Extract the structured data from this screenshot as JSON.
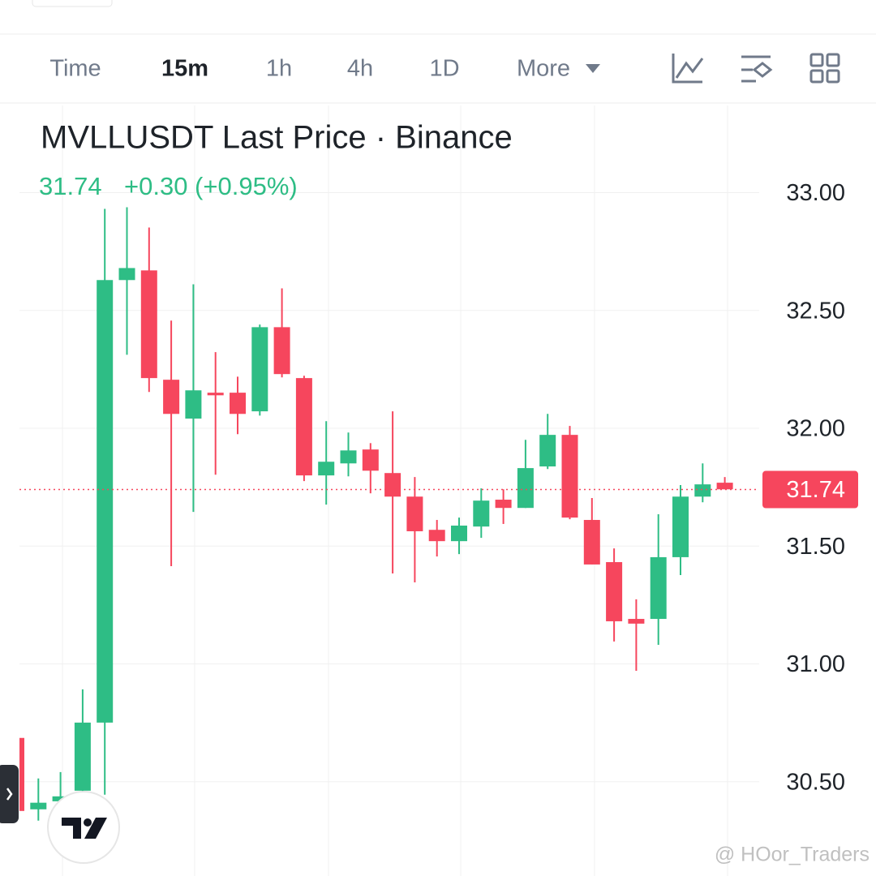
{
  "ui": {
    "tabs": [
      "Time",
      "15m",
      "1h",
      "4h",
      "1D",
      "More"
    ],
    "price": "31.74",
    "change": "+0.30 (+0.95%)",
    "watermark": "@ HOor_Traders"
  },
  "chart_data": {
    "type": "candlestick",
    "title": "MVLLUSDT Last Price · Binance",
    "open": [
      30.686,
      30.383,
      30.417,
      30.462,
      30.751,
      32.629,
      32.67,
      32.206,
      32.041,
      32.151,
      32.151,
      32.072,
      32.429,
      32.213,
      31.8,
      31.851,
      31.91,
      31.81,
      31.71,
      31.569,
      31.521,
      31.583,
      31.697,
      31.662,
      31.838,
      31.972,
      31.611,
      31.432,
      31.191,
      31.191,
      31.453,
      31.71,
      31.769
    ],
    "high": [
      30.686,
      30.514,
      30.541,
      30.892,
      32.931,
      32.938,
      32.852,
      32.457,
      32.611,
      32.323,
      32.219,
      32.44,
      32.594,
      32.223,
      32.03,
      31.982,
      31.937,
      32.072,
      31.793,
      31.611,
      31.621,
      31.745,
      31.741,
      31.951,
      32.061,
      32.01,
      31.704,
      31.49,
      31.274,
      31.635,
      31.759,
      31.851,
      31.793
    ],
    "low": [
      30.376,
      30.335,
      30.376,
      30.428,
      30.445,
      32.312,
      32.154,
      31.415,
      31.645,
      31.803,
      31.975,
      32.054,
      32.216,
      31.776,
      31.676,
      31.796,
      31.724,
      31.384,
      31.346,
      31.456,
      31.466,
      31.535,
      31.594,
      31.662,
      31.827,
      31.614,
      31.422,
      31.095,
      30.971,
      31.081,
      31.377,
      31.686,
      31.741
    ],
    "close": [
      30.376,
      30.411,
      30.438,
      30.751,
      32.629,
      32.68,
      32.213,
      32.061,
      32.161,
      32.14,
      32.061,
      32.429,
      32.23,
      31.8,
      31.858,
      31.906,
      31.82,
      31.71,
      31.563,
      31.521,
      31.587,
      31.693,
      31.662,
      31.831,
      31.972,
      31.621,
      31.422,
      31.181,
      31.171,
      31.453,
      31.71,
      31.762,
      31.741
    ],
    "up_color": "#2ebd85",
    "down_color": "#f6465d",
    "last_price": {
      "value": 31.74,
      "label": "31.74"
    },
    "ylim": [
      30.1,
      33.37
    ],
    "yticks": [
      {
        "value": 33,
        "label": "33.00"
      },
      {
        "value": 32.5,
        "label": "32.50"
      },
      {
        "value": 32,
        "label": "32.00"
      },
      {
        "value": 31.5,
        "label": "31.50"
      },
      {
        "value": 31,
        "label": "31.00"
      },
      {
        "value": 30.5,
        "label": "30.50"
      }
    ],
    "grid": true
  }
}
